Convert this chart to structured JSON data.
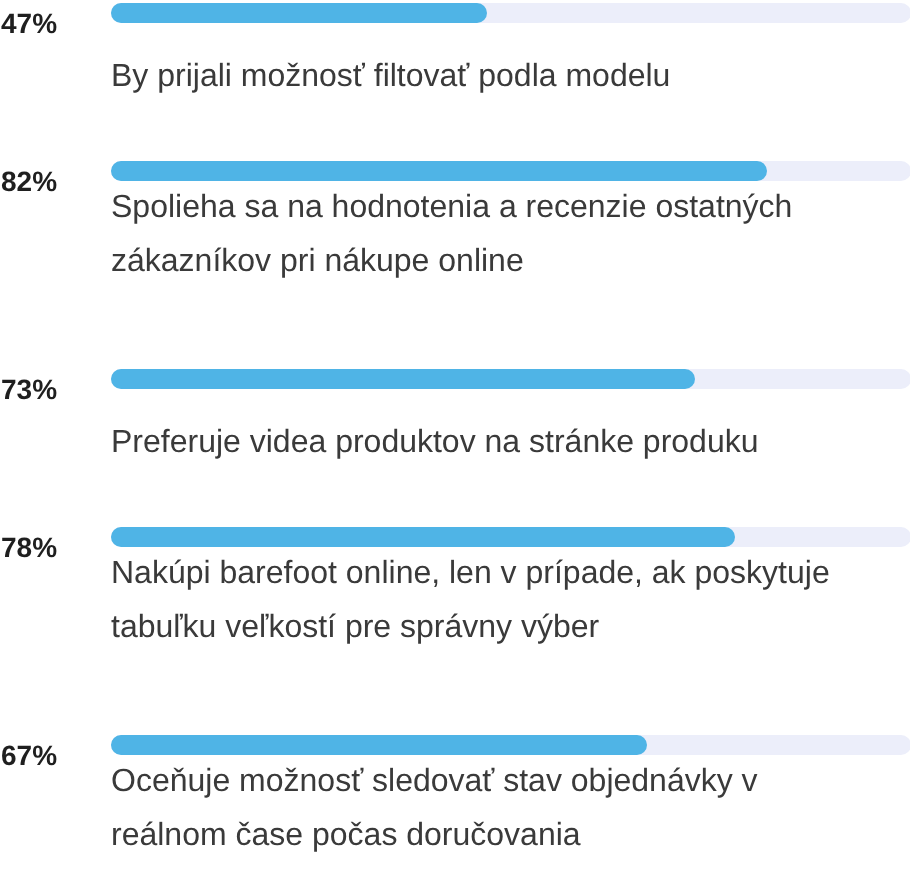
{
  "chart_data": {
    "type": "bar",
    "orientation": "horizontal",
    "categories": [
      "By prijali možnosť filtovať podla modelu",
      "Spolieha sa na hodnotenia a recenzie ostatných zákazníkov pri nákupe online",
      "Preferuje videa produktov na stránke produku",
      "Nakúpi barefoot online, len v prípade, ak poskytuje tabuľku veľkostí pre správny výber",
      "Oceňuje možnosť sledovať stav objednávky v reálnom čase počas doručovania"
    ],
    "values": [
      47,
      82,
      73,
      78,
      67
    ],
    "value_labels": [
      "47%",
      "82%",
      "73%",
      "78%",
      "67%"
    ],
    "color": "#4fb4e6",
    "xlim": [
      0,
      100
    ],
    "tick_labels": false
  }
}
